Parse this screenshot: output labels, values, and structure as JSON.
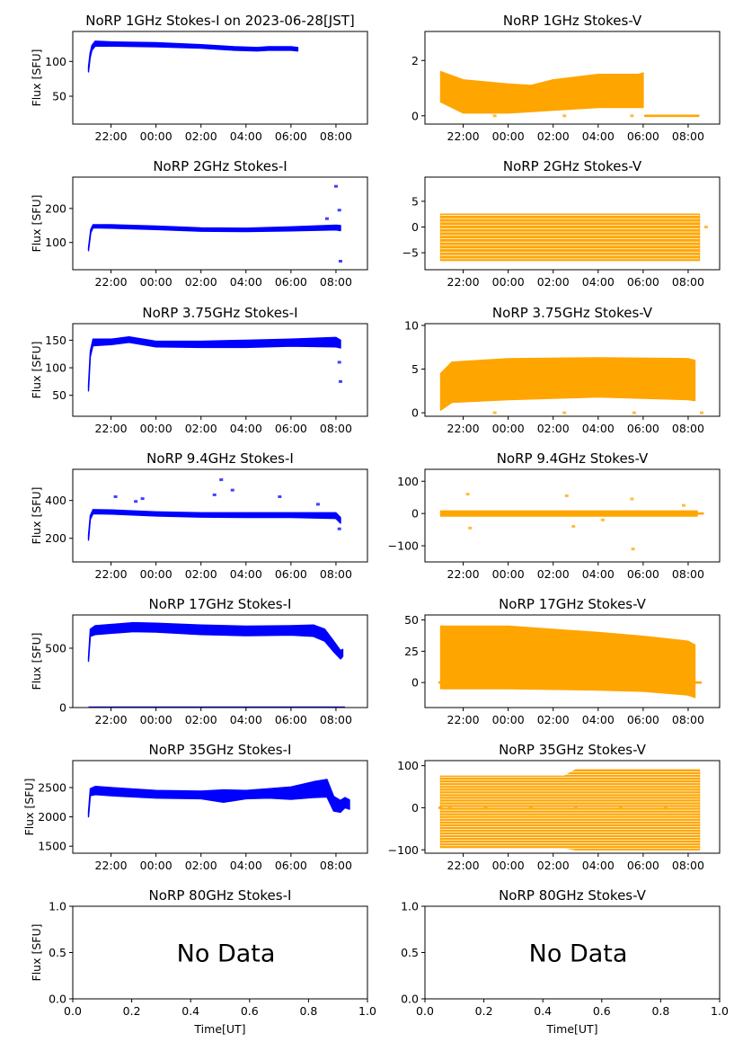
{
  "colors": {
    "stokes_i": "#0000ff",
    "stokes_v": "#ffa500",
    "axis": "#000000",
    "background": "#ffffff"
  },
  "chart_data": [
    {
      "type": "scatter",
      "panel": "1GHz-I",
      "color": "#0000ff",
      "title": "NoRP 1GHz Stokes-I on 2023-06-28[JST]",
      "ylabel": "Flux [SFU]",
      "xlabel": "",
      "xlim": [
        20.3,
        33.4
      ],
      "ylim": [
        10,
        143
      ],
      "xticks": [
        22,
        24,
        26,
        28,
        30,
        32
      ],
      "xticklabels": [
        "22:00",
        "00:00",
        "02:00",
        "04:00",
        "06:00",
        "08:00"
      ],
      "yticks": [
        50,
        100
      ],
      "yticklabels": [
        "50",
        "100"
      ],
      "band": [
        [
          21.0,
          85,
          92
        ],
        [
          21.07,
          105,
          112
        ],
        [
          21.15,
          116,
          123
        ],
        [
          21.3,
          122,
          129
        ],
        [
          22.0,
          122,
          128
        ],
        [
          24.0,
          121,
          127
        ],
        [
          26.0,
          119,
          124
        ],
        [
          27.5,
          116,
          121
        ],
        [
          28.5,
          115,
          120
        ],
        [
          29.0,
          116,
          121
        ],
        [
          30.0,
          116,
          121
        ],
        [
          30.3,
          115,
          120
        ]
      ]
    },
    {
      "type": "scatter",
      "panel": "1GHz-V",
      "color": "#ffa500",
      "title": "NoRP 1GHz Stokes-V",
      "ylabel": "",
      "xlabel": "",
      "xlim": [
        20.3,
        33.4
      ],
      "ylim": [
        -0.3,
        3.05
      ],
      "xticks": [
        22,
        24,
        26,
        28,
        30,
        32
      ],
      "xticklabels": [
        "22:00",
        "00:00",
        "02:00",
        "04:00",
        "06:00",
        "08:00"
      ],
      "yticks": [
        0,
        2
      ],
      "yticklabels": [
        "0",
        "2"
      ],
      "band": [
        [
          21.0,
          0.5,
          1.6
        ],
        [
          22.0,
          0.1,
          1.3
        ],
        [
          24.0,
          0.1,
          1.15
        ],
        [
          25.0,
          0.15,
          1.1
        ],
        [
          26.0,
          0.2,
          1.3
        ],
        [
          28.0,
          0.3,
          1.5
        ],
        [
          29.8,
          0.3,
          1.5
        ],
        [
          30.0,
          0.3,
          1.55
        ]
      ],
      "segments": [
        [
          30.05,
          32.5,
          0
        ]
      ],
      "markers": [
        [
          23.4,
          0
        ],
        [
          26.5,
          0
        ],
        [
          29.5,
          0
        ]
      ]
    },
    {
      "type": "scatter",
      "panel": "2GHz-I",
      "color": "#0000ff",
      "title": "NoRP 2GHz Stokes-I",
      "ylabel": "Flux [SFU]",
      "xlabel": "",
      "xlim": [
        20.3,
        33.4
      ],
      "ylim": [
        20,
        292
      ],
      "xticks": [
        22,
        24,
        26,
        28,
        30,
        32
      ],
      "xticklabels": [
        "22:00",
        "00:00",
        "02:00",
        "04:00",
        "06:00",
        "08:00"
      ],
      "yticks": [
        100,
        200
      ],
      "yticklabels": [
        "100",
        "200"
      ],
      "band": [
        [
          21.0,
          76,
          84
        ],
        [
          21.1,
          128,
          138
        ],
        [
          21.2,
          143,
          152
        ],
        [
          22.0,
          142,
          152
        ],
        [
          24.0,
          138,
          148
        ],
        [
          26.0,
          133,
          143
        ],
        [
          28.0,
          132,
          142
        ],
        [
          30.0,
          134,
          146
        ],
        [
          32.0,
          137,
          151
        ],
        [
          32.2,
          135,
          150
        ]
      ],
      "segments": [],
      "markers": [
        [
          32.0,
          265
        ],
        [
          32.15,
          195
        ],
        [
          32.2,
          45
        ],
        [
          31.6,
          170
        ]
      ]
    },
    {
      "type": "scatter",
      "panel": "2GHz-V",
      "color": "#ffa500",
      "title": "NoRP 2GHz Stokes-V",
      "ylabel": "",
      "xlabel": "",
      "xlim": [
        20.3,
        33.4
      ],
      "ylim": [
        -8.3,
        9.7
      ],
      "xticks": [
        22,
        24,
        26,
        28,
        30,
        32
      ],
      "xticklabels": [
        "22:00",
        "00:00",
        "02:00",
        "04:00",
        "06:00",
        "08:00"
      ],
      "yticks": [
        -5,
        0,
        5
      ],
      "yticklabels": [
        "−5",
        "0",
        "5"
      ],
      "band": [
        [
          21.0,
          -6.5,
          2.5
        ],
        [
          32.5,
          -6.5,
          2.5
        ]
      ],
      "segments": [],
      "markers": [
        [
          32.8,
          0
        ]
      ]
    },
    {
      "type": "scatter",
      "panel": "3.75GHz-I",
      "color": "#0000ff",
      "title": "NoRP 3.75GHz Stokes-I",
      "ylabel": "Flux [SFU]",
      "xlabel": "",
      "xlim": [
        20.3,
        33.4
      ],
      "ylim": [
        12,
        180
      ],
      "xticks": [
        22,
        24,
        26,
        28,
        30,
        32
      ],
      "xticklabels": [
        "22:00",
        "00:00",
        "02:00",
        "04:00",
        "06:00",
        "08:00"
      ],
      "yticks": [
        50,
        100,
        150
      ],
      "yticklabels": [
        "50",
        "100",
        "150"
      ],
      "band": [
        [
          21.0,
          58,
          68
        ],
        [
          21.08,
          120,
          130
        ],
        [
          21.2,
          140,
          152
        ],
        [
          22.0,
          142,
          152
        ],
        [
          22.8,
          146,
          156
        ],
        [
          24.0,
          138,
          148
        ],
        [
          26.0,
          137,
          148
        ],
        [
          28.0,
          137,
          150
        ],
        [
          30.0,
          139,
          152
        ],
        [
          32.0,
          138,
          155
        ],
        [
          32.2,
          136,
          150
        ]
      ],
      "segments": [],
      "markers": [
        [
          32.15,
          110
        ],
        [
          32.2,
          75
        ]
      ]
    },
    {
      "type": "scatter",
      "panel": "3.75GHz-V",
      "color": "#ffa500",
      "title": "NoRP 3.75GHz Stokes-V",
      "ylabel": "",
      "xlabel": "",
      "xlim": [
        20.3,
        33.4
      ],
      "ylim": [
        -0.4,
        10.2
      ],
      "xticks": [
        22,
        24,
        26,
        28,
        30,
        32
      ],
      "xticklabels": [
        "22:00",
        "00:00",
        "02:00",
        "04:00",
        "06:00",
        "08:00"
      ],
      "yticks": [
        0,
        5,
        10
      ],
      "yticklabels": [
        "0",
        "5",
        "10"
      ],
      "band": [
        [
          21.0,
          0.3,
          4.5
        ],
        [
          21.5,
          1.2,
          5.8
        ],
        [
          24.0,
          1.5,
          6.2
        ],
        [
          28.0,
          1.8,
          6.3
        ],
        [
          32.0,
          1.5,
          6.2
        ],
        [
          32.3,
          1.4,
          6.0
        ]
      ],
      "segments": [],
      "markers": [
        [
          23.4,
          0
        ],
        [
          26.5,
          0
        ],
        [
          29.6,
          0
        ],
        [
          32.6,
          0
        ]
      ]
    },
    {
      "type": "scatter",
      "panel": "9.4GHz-I",
      "color": "#0000ff",
      "title": "NoRP 9.4GHz Stokes-I",
      "ylabel": "Flux [SFU]",
      "xlabel": "",
      "xlim": [
        20.3,
        33.4
      ],
      "ylim": [
        75,
        565
      ],
      "xticks": [
        22,
        24,
        26,
        28,
        30,
        32
      ],
      "xticklabels": [
        "22:00",
        "00:00",
        "02:00",
        "04:00",
        "06:00",
        "08:00"
      ],
      "yticks": [
        200,
        400
      ],
      "yticklabels": [
        "200",
        "400"
      ],
      "band": [
        [
          21.0,
          190,
          215
        ],
        [
          21.08,
          300,
          320
        ],
        [
          21.2,
          330,
          352
        ],
        [
          22.0,
          328,
          350
        ],
        [
          24.0,
          318,
          340
        ],
        [
          26.0,
          312,
          335
        ],
        [
          28.0,
          310,
          335
        ],
        [
          30.0,
          310,
          335
        ],
        [
          32.0,
          305,
          335
        ],
        [
          32.2,
          280,
          310
        ]
      ],
      "segments": [],
      "markers": [
        [
          22.2,
          420
        ],
        [
          23.1,
          395
        ],
        [
          23.4,
          410
        ],
        [
          26.6,
          430
        ],
        [
          26.9,
          510
        ],
        [
          27.4,
          455
        ],
        [
          29.5,
          420
        ],
        [
          31.2,
          380
        ],
        [
          32.15,
          250
        ]
      ]
    },
    {
      "type": "scatter",
      "panel": "9.4GHz-V",
      "color": "#ffa500",
      "title": "NoRP 9.4GHz Stokes-V",
      "ylabel": "",
      "xlabel": "",
      "xlim": [
        20.3,
        33.4
      ],
      "ylim": [
        -150,
        137
      ],
      "xticks": [
        22,
        24,
        26,
        28,
        30,
        32
      ],
      "xticklabels": [
        "22:00",
        "00:00",
        "02:00",
        "04:00",
        "06:00",
        "08:00"
      ],
      "yticks": [
        -100,
        0,
        100
      ],
      "yticklabels": [
        "−100",
        "0",
        "100"
      ],
      "band": [
        [
          21.0,
          -8,
          8
        ],
        [
          32.4,
          -8,
          8
        ]
      ],
      "segments": [
        [
          32.4,
          32.7,
          0
        ]
      ],
      "markers": [
        [
          22.2,
          60
        ],
        [
          22.3,
          -45
        ],
        [
          26.6,
          55
        ],
        [
          26.9,
          -40
        ],
        [
          28.2,
          -20
        ],
        [
          29.5,
          45
        ],
        [
          29.55,
          -110
        ],
        [
          31.8,
          25
        ]
      ]
    },
    {
      "type": "scatter",
      "panel": "17GHz-I",
      "color": "#0000ff",
      "title": "NoRP 17GHz Stokes-I",
      "ylabel": "Flux [SFU]",
      "xlabel": "",
      "xlim": [
        20.3,
        33.4
      ],
      "ylim": [
        0,
        780
      ],
      "xticks": [
        22,
        24,
        26,
        28,
        30,
        32
      ],
      "xticklabels": [
        "22:00",
        "00:00",
        "02:00",
        "04:00",
        "06:00",
        "08:00"
      ],
      "yticks": [
        0,
        500
      ],
      "yticklabels": [
        "0",
        "500"
      ],
      "band": [
        [
          21.0,
          390,
          420
        ],
        [
          21.08,
          600,
          660
        ],
        [
          21.3,
          615,
          690
        ],
        [
          23.0,
          640,
          715
        ],
        [
          24.0,
          635,
          710
        ],
        [
          26.0,
          615,
          695
        ],
        [
          28.0,
          605,
          685
        ],
        [
          30.0,
          610,
          690
        ],
        [
          31.0,
          600,
          695
        ],
        [
          31.5,
          560,
          660
        ],
        [
          31.9,
          470,
          560
        ],
        [
          32.2,
          410,
          480
        ],
        [
          32.3,
          430,
          490
        ]
      ],
      "segments": [
        [
          21.0,
          32.4,
          0
        ]
      ],
      "markers": []
    },
    {
      "type": "scatter",
      "panel": "17GHz-V",
      "color": "#ffa500",
      "title": "NoRP 17GHz Stokes-V",
      "ylabel": "",
      "xlabel": "",
      "xlim": [
        20.3,
        33.4
      ],
      "ylim": [
        -20,
        54
      ],
      "xticks": [
        22,
        24,
        26,
        28,
        30,
        32
      ],
      "xticklabels": [
        "22:00",
        "00:00",
        "02:00",
        "04:00",
        "06:00",
        "08:00"
      ],
      "yticks": [
        0,
        25,
        50
      ],
      "yticklabels": [
        "0",
        "25",
        "50"
      ],
      "band": [
        [
          21.0,
          -5,
          45
        ],
        [
          24.0,
          -5,
          45
        ],
        [
          28.0,
          -6,
          40
        ],
        [
          30.0,
          -7,
          37
        ],
        [
          32.0,
          -10,
          33
        ],
        [
          32.3,
          -12,
          30
        ]
      ],
      "segments": [
        [
          20.9,
          21.05,
          0
        ],
        [
          32.3,
          32.6,
          0
        ]
      ],
      "markers": []
    },
    {
      "type": "scatter",
      "panel": "35GHz-I",
      "color": "#0000ff",
      "title": "NoRP 35GHz Stokes-I",
      "ylabel": "Flux [SFU]",
      "xlabel": "",
      "xlim": [
        20.3,
        33.4
      ],
      "ylim": [
        1380,
        2960
      ],
      "xticks": [
        22,
        24,
        26,
        28,
        30,
        32
      ],
      "xticklabels": [
        "22:00",
        "00:00",
        "02:00",
        "04:00",
        "06:00",
        "08:00"
      ],
      "yticks": [
        1500,
        2000,
        2500
      ],
      "yticklabels": [
        "1500",
        "2000",
        "2500"
      ],
      "band": [
        [
          21.0,
          2000,
          2080
        ],
        [
          21.08,
          2360,
          2480
        ],
        [
          21.3,
          2380,
          2520
        ],
        [
          22.0,
          2360,
          2500
        ],
        [
          24.0,
          2320,
          2450
        ],
        [
          26.0,
          2310,
          2440
        ],
        [
          27.0,
          2250,
          2460
        ],
        [
          28.0,
          2310,
          2450
        ],
        [
          29.0,
          2320,
          2480
        ],
        [
          30.0,
          2300,
          2510
        ],
        [
          31.0,
          2330,
          2600
        ],
        [
          31.6,
          2340,
          2640
        ],
        [
          31.9,
          2100,
          2350
        ],
        [
          32.2,
          2080,
          2280
        ],
        [
          32.4,
          2160,
          2330
        ],
        [
          32.6,
          2130,
          2290
        ]
      ],
      "segments": [],
      "markers": []
    },
    {
      "type": "scatter",
      "panel": "35GHz-V",
      "color": "#ffa500",
      "title": "NoRP 35GHz Stokes-V",
      "ylabel": "",
      "xlabel": "",
      "xlim": [
        20.3,
        33.4
      ],
      "ylim": [
        -108,
        112
      ],
      "xticks": [
        22,
        24,
        26,
        28,
        30,
        32
      ],
      "xticklabels": [
        "22:00",
        "00:00",
        "02:00",
        "04:00",
        "06:00",
        "08:00"
      ],
      "yticks": [
        -100,
        0,
        100
      ],
      "yticklabels": [
        "−100",
        "0",
        "100"
      ],
      "band": [
        [
          21.0,
          -95,
          75
        ],
        [
          26.5,
          -95,
          75
        ],
        [
          27.0,
          -100,
          90
        ],
        [
          32.5,
          -100,
          90
        ]
      ],
      "segments": [
        [
          20.9,
          21.05,
          0
        ]
      ],
      "markers": [
        [
          21.4,
          0
        ],
        [
          23.0,
          0
        ],
        [
          25.0,
          0
        ],
        [
          27.0,
          0
        ],
        [
          29.0,
          0
        ],
        [
          31.0,
          0
        ]
      ]
    },
    {
      "type": "scatter",
      "panel": "80GHz-I",
      "color": "#0000ff",
      "title": "NoRP 80GHz Stokes-I",
      "ylabel": "Flux [SFU]",
      "xlabel": "Time[UT]",
      "xlim": [
        0,
        1
      ],
      "ylim": [
        0,
        1
      ],
      "xticks": [
        0,
        0.2,
        0.4,
        0.6,
        0.8,
        1.0
      ],
      "xticklabels": [
        "0.0",
        "0.2",
        "0.4",
        "0.6",
        "0.8",
        "1.0"
      ],
      "yticks": [
        0,
        0.5,
        1.0
      ],
      "yticklabels": [
        "0.0",
        "0.5",
        "1.0"
      ],
      "band": [],
      "segments": [],
      "markers": [],
      "annotation": "No Data"
    },
    {
      "type": "scatter",
      "panel": "80GHz-V",
      "color": "#ffa500",
      "title": "NoRP 80GHz Stokes-V",
      "ylabel": "",
      "xlabel": "Time[UT]",
      "xlim": [
        0,
        1
      ],
      "ylim": [
        0,
        1
      ],
      "xticks": [
        0,
        0.2,
        0.4,
        0.6,
        0.8,
        1.0
      ],
      "xticklabels": [
        "0.0",
        "0.2",
        "0.4",
        "0.6",
        "0.8",
        "1.0"
      ],
      "yticks": [
        0,
        0.5,
        1.0
      ],
      "yticklabels": [
        "0.0",
        "0.5",
        "1.0"
      ],
      "band": [],
      "segments": [],
      "markers": [],
      "annotation": "No Data"
    }
  ]
}
